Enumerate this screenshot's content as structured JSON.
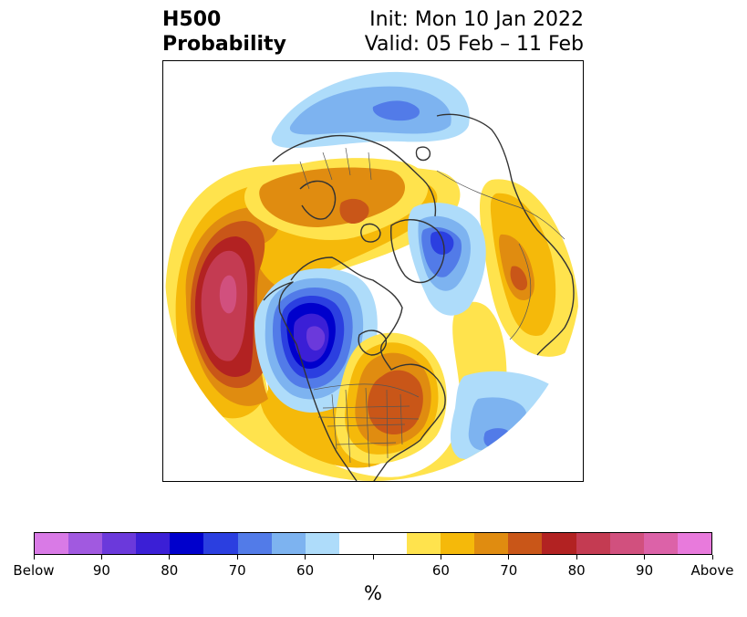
{
  "header": {
    "title_line1": "H500",
    "title_line2": "Probability",
    "init_text": "Init: Mon 10 Jan 2022",
    "valid_text": "Valid: 05 Feb – 11 Feb"
  },
  "map": {
    "projection": "north-polar-stereographic",
    "features": [
      "continents",
      "country-borders",
      "us-state-borders"
    ]
  },
  "colorbar": {
    "unit_label": "%",
    "colors": [
      "#d97ae6",
      "#a159e0",
      "#6b39db",
      "#3b1fd6",
      "#0000cc",
      "#2b3fe0",
      "#527be8",
      "#7db3f0",
      "#aedcfa",
      "#ffffff",
      "#ffffff",
      "#ffe34d",
      "#f5b90a",
      "#e08c10",
      "#c95618",
      "#b22222",
      "#c43b52",
      "#d1507e",
      "#dc62a8",
      "#e87adc"
    ],
    "tick_labels": [
      "Below",
      "90",
      "80",
      "70",
      "60",
      "",
      "60",
      "70",
      "80",
      "90",
      "Above"
    ]
  }
}
